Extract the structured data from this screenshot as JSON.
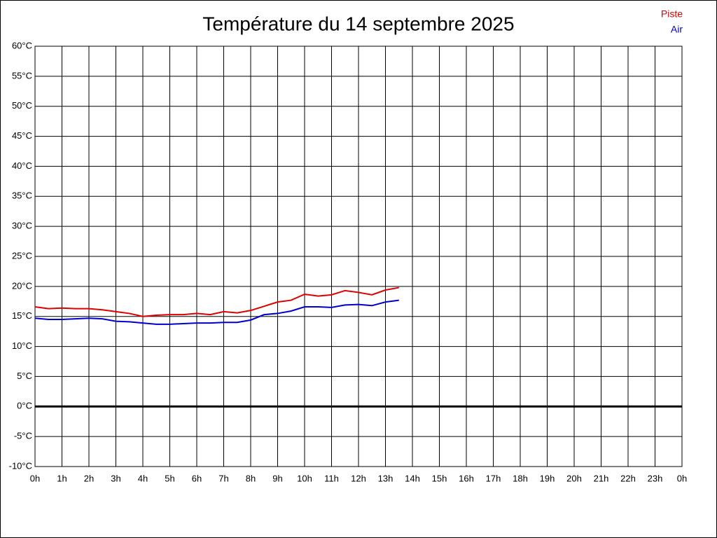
{
  "chart_data": {
    "type": "line",
    "title": "Température du 14 septembre 2025",
    "x": [
      0,
      0.5,
      1,
      1.5,
      2,
      2.5,
      3,
      3.5,
      4,
      4.5,
      5,
      5.5,
      6,
      6.5,
      7,
      7.5,
      8,
      8.5,
      9,
      9.5,
      10,
      10.5,
      11,
      11.5,
      12,
      12.5,
      13,
      13.5
    ],
    "series": [
      {
        "name": "Piste",
        "color": "#dd0000",
        "values": [
          16.6,
          16.3,
          16.4,
          16.3,
          16.3,
          16.1,
          15.8,
          15.5,
          15.0,
          15.2,
          15.3,
          15.3,
          15.5,
          15.3,
          15.8,
          15.6,
          16.0,
          16.7,
          17.4,
          17.7,
          18.7,
          18.4,
          18.6,
          19.3,
          19.0,
          18.6,
          19.4,
          19.8
        ]
      },
      {
        "name": "Air",
        "color": "#0000cc",
        "values": [
          14.7,
          14.5,
          14.5,
          14.6,
          14.7,
          14.6,
          14.2,
          14.1,
          13.9,
          13.7,
          13.7,
          13.8,
          13.9,
          13.9,
          14.0,
          14.0,
          14.4,
          15.3,
          15.5,
          15.9,
          16.6,
          16.6,
          16.5,
          16.9,
          17.0,
          16.8,
          17.4,
          17.7
        ]
      }
    ],
    "xlim": [
      0,
      24
    ],
    "xticks": [
      {
        "value": 0,
        "label": "0h"
      },
      {
        "value": 1,
        "label": "1h"
      },
      {
        "value": 2,
        "label": "2h"
      },
      {
        "value": 3,
        "label": "3h"
      },
      {
        "value": 4,
        "label": "4h"
      },
      {
        "value": 5,
        "label": "5h"
      },
      {
        "value": 6,
        "label": "6h"
      },
      {
        "value": 7,
        "label": "7h"
      },
      {
        "value": 8,
        "label": "8h"
      },
      {
        "value": 9,
        "label": "9h"
      },
      {
        "value": 10,
        "label": "10h"
      },
      {
        "value": 11,
        "label": "11h"
      },
      {
        "value": 12,
        "label": "12h"
      },
      {
        "value": 13,
        "label": "13h"
      },
      {
        "value": 14,
        "label": "14h"
      },
      {
        "value": 15,
        "label": "15h"
      },
      {
        "value": 16,
        "label": "16h"
      },
      {
        "value": 17,
        "label": "17h"
      },
      {
        "value": 18,
        "label": "18h"
      },
      {
        "value": 19,
        "label": "19h"
      },
      {
        "value": 20,
        "label": "20h"
      },
      {
        "value": 21,
        "label": "21h"
      },
      {
        "value": 22,
        "label": "22h"
      },
      {
        "value": 23,
        "label": "23h"
      },
      {
        "value": 24,
        "label": "0h"
      }
    ],
    "ylim": [
      -10,
      60
    ],
    "yticks": [
      {
        "value": -10,
        "label": "-10°C"
      },
      {
        "value": -5,
        "label": "-5°C"
      },
      {
        "value": 0,
        "label": "0°C"
      },
      {
        "value": 5,
        "label": "5°C"
      },
      {
        "value": 10,
        "label": "10°C"
      },
      {
        "value": 15,
        "label": "15°C"
      },
      {
        "value": 20,
        "label": "20°C"
      },
      {
        "value": 25,
        "label": "25°C"
      },
      {
        "value": 30,
        "label": "30°C"
      },
      {
        "value": 35,
        "label": "35°C"
      },
      {
        "value": 40,
        "label": "40°C"
      },
      {
        "value": 45,
        "label": "45°C"
      },
      {
        "value": 50,
        "label": "50°C"
      },
      {
        "value": 55,
        "label": "55°C"
      },
      {
        "value": 60,
        "label": "60°C"
      }
    ],
    "grid": true,
    "zero_line": true,
    "legend": "top-right"
  }
}
